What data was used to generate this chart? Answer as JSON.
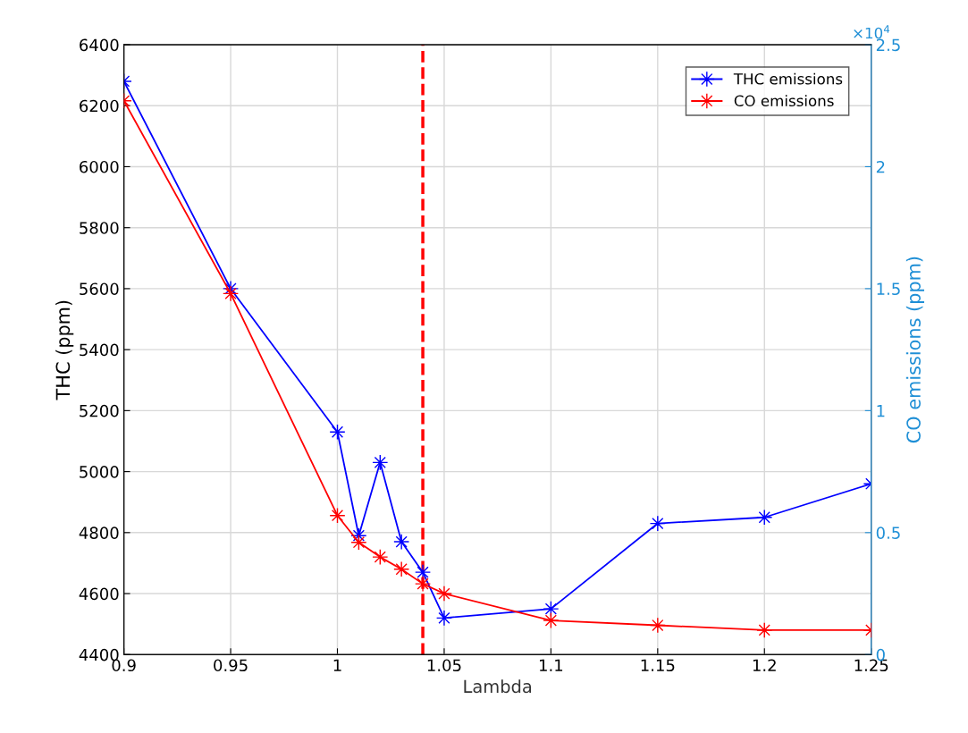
{
  "chart_data": {
    "type": "line",
    "xlabel": "Lambda",
    "ylabel": "THC (ppm)",
    "y2label": "CO emissions (ppm)",
    "x": [
      0.9,
      0.95,
      1.0,
      1.01,
      1.02,
      1.03,
      1.04,
      1.05,
      1.1,
      1.15,
      1.2,
      1.25
    ],
    "series": [
      {
        "name": "THC emissions",
        "color": "#0000ff",
        "values": [
          6280,
          5600,
          5130,
          4790,
          5030,
          4770,
          4670,
          4520,
          4550,
          4830,
          4850,
          4960
        ]
      },
      {
        "name": "CO emissions",
        "color": "#ff0000",
        "axis": "y2",
        "values": [
          2.27,
          1.48,
          0.57,
          0.46,
          0.4,
          0.35,
          0.29,
          0.25,
          0.14,
          0.12,
          0.1,
          0.1
        ]
      }
    ],
    "xlim": [
      0.9,
      1.25
    ],
    "xticks": [
      0.9,
      0.95,
      1,
      1.05,
      1.1,
      1.15,
      1.2,
      1.25
    ],
    "ylim": [
      4400,
      6400
    ],
    "yticks": [
      4400,
      4600,
      4800,
      5000,
      5200,
      5400,
      5600,
      5800,
      6000,
      6200,
      6400
    ],
    "y2lim": [
      0,
      2.5
    ],
    "y2ticks": [
      0,
      0.5,
      1,
      1.5,
      2,
      2.5
    ],
    "annotations": [
      "×10$^{4}$"
    ],
    "ref_lines": [
      {
        "axis": "x",
        "value": 1.04,
        "label": null,
        "color": "#ff0000",
        "line_style": "dashed"
      }
    ],
    "grid": true,
    "legend": "top right",
    "marker": "star",
    "line_style": "solid"
  }
}
